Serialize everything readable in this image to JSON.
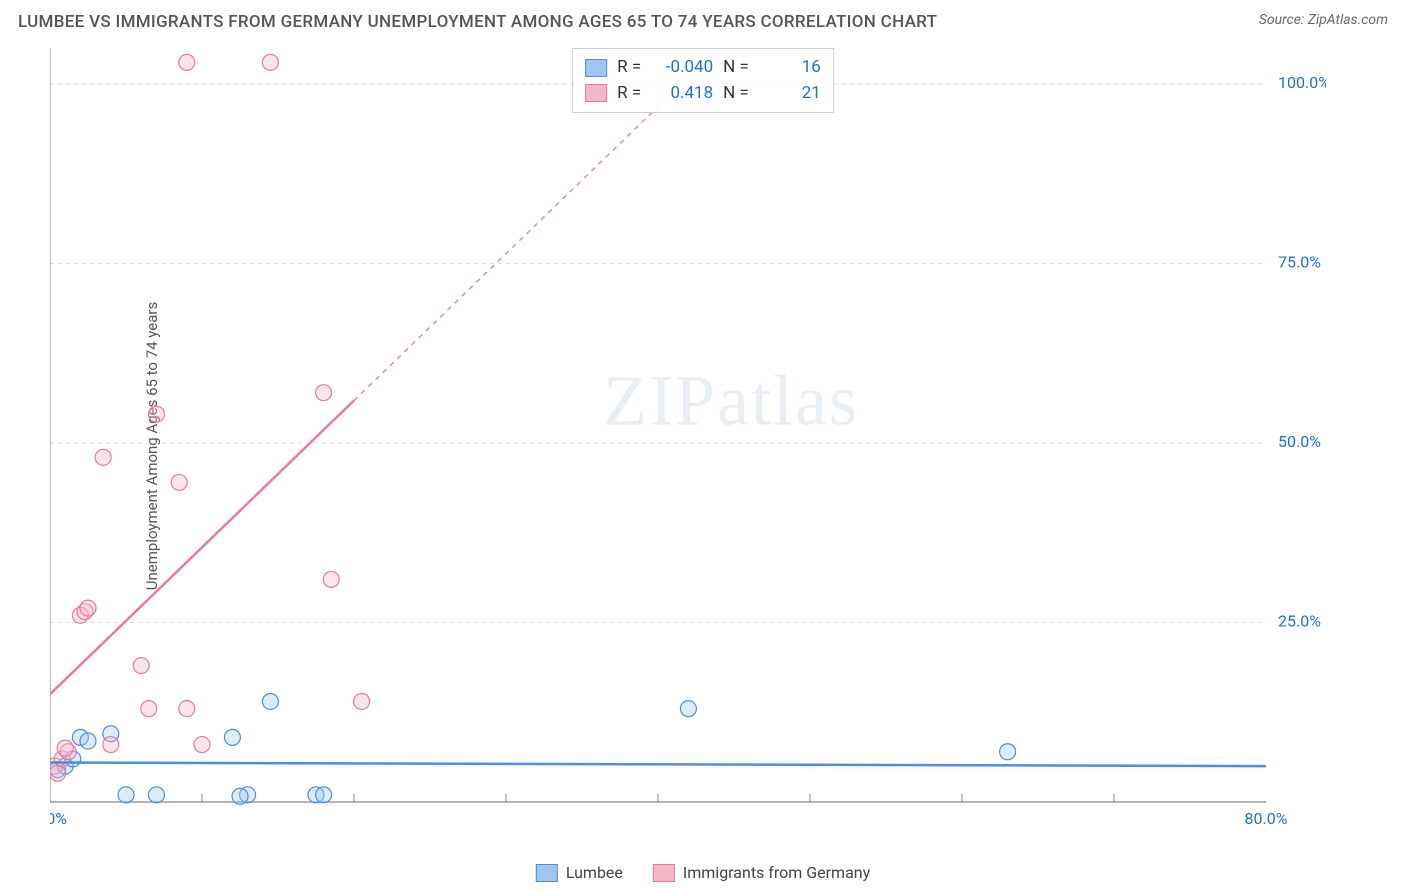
{
  "header": {
    "title": "LUMBEE VS IMMIGRANTS FROM GERMANY UNEMPLOYMENT AMONG AGES 65 TO 74 YEARS CORRELATION CHART",
    "source": "Source: ZipAtlas.com"
  },
  "ylabel": "Unemployment Among Ages 65 to 74 years",
  "watermark": {
    "part1": "ZIP",
    "part2": "atlas"
  },
  "chart": {
    "type": "scatter",
    "xlim": [
      0,
      80
    ],
    "ylim": [
      0,
      105
    ],
    "xticks": [
      {
        "v": 0,
        "label": "0.0%"
      },
      {
        "v": 80,
        "label": "80.0%"
      }
    ],
    "x_minor_ticks": [
      10,
      20,
      30,
      40,
      50,
      60,
      70
    ],
    "yticks": [
      {
        "v": 25,
        "label": "25.0%"
      },
      {
        "v": 50,
        "label": "50.0%"
      },
      {
        "v": 75,
        "label": "75.0%"
      },
      {
        "v": 100,
        "label": "100.0%"
      }
    ],
    "grid_color": "#d8d8d8",
    "axis_color": "#888888",
    "tick_label_color": "#1e6fd9",
    "background_color": "#ffffff",
    "marker_radius": 8,
    "series": [
      {
        "key": "lumbee",
        "label": "Lumbee",
        "color_stroke": "#4a8fe0",
        "color_fill": "#9fc6f0",
        "R": "-0.040",
        "N": "16",
        "points": [
          [
            0.5,
            4.5
          ],
          [
            1,
            5
          ],
          [
            1.5,
            6
          ],
          [
            2,
            9
          ],
          [
            2.5,
            8.5
          ],
          [
            4,
            9.5
          ],
          [
            5,
            1
          ],
          [
            7,
            1
          ],
          [
            12,
            9
          ],
          [
            13,
            1
          ],
          [
            12.5,
            0.8
          ],
          [
            14.5,
            14
          ],
          [
            17.5,
            1
          ],
          [
            18,
            1
          ],
          [
            42,
            13
          ],
          [
            63,
            7
          ]
        ],
        "trend": {
          "x1": 0,
          "y1": 5.5,
          "x2": 80,
          "y2": 5.0
        }
      },
      {
        "key": "germany",
        "label": "Immigrants from Germany",
        "color_stroke": "#e87a9a",
        "color_fill": "#f5b8c8",
        "R": "0.418",
        "N": "21",
        "points": [
          [
            0.3,
            5
          ],
          [
            0.5,
            4
          ],
          [
            0.8,
            6
          ],
          [
            1.2,
            7
          ],
          [
            1,
            7.5
          ],
          [
            2,
            26
          ],
          [
            2.3,
            26.5
          ],
          [
            2.5,
            27
          ],
          [
            3.5,
            48
          ],
          [
            4,
            8
          ],
          [
            6,
            19
          ],
          [
            6.5,
            13
          ],
          [
            7,
            54
          ],
          [
            8.5,
            44.5
          ],
          [
            9,
            13
          ],
          [
            10,
            8
          ],
          [
            9,
            103
          ],
          [
            14.5,
            103
          ],
          [
            18,
            57
          ],
          [
            18.5,
            31
          ],
          [
            20.5,
            14
          ]
        ],
        "trend": {
          "x1": 0,
          "y1": 15,
          "x2": 44,
          "y2": 105
        },
        "trend_solid_end_x": 20
      }
    ]
  },
  "legend_top": {
    "r_label": "R =",
    "n_label": "N ="
  }
}
